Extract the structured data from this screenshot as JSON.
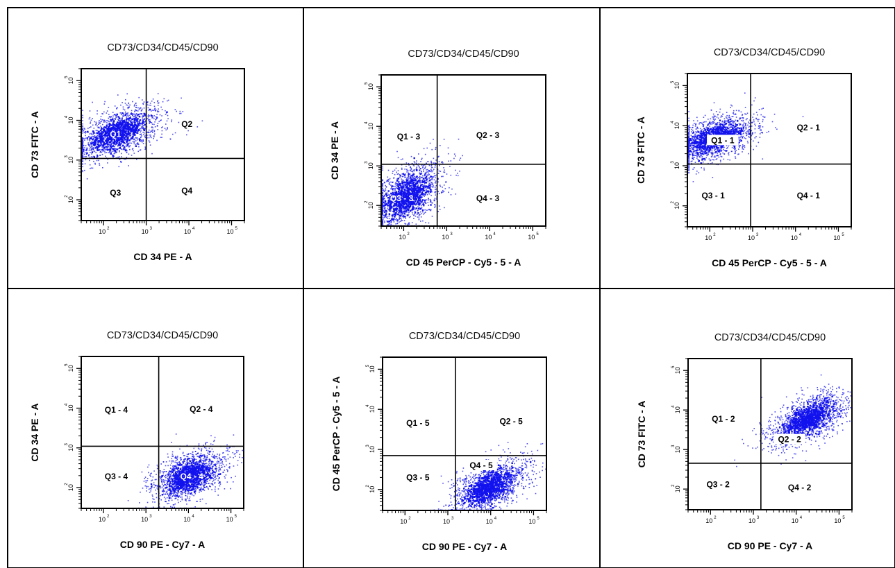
{
  "figure_title": "",
  "colors": {
    "events": "#1212ee",
    "grid": "#000000",
    "minor_events": "#44cc66"
  },
  "chart_data": [
    {
      "type": "scatter",
      "title": "CD73/CD34/CD45/CD90",
      "xlabel": "CD 34 PE - A",
      "ylabel": "CD 73 FITC - A",
      "xscale": "log",
      "yscale": "log",
      "xlim": [
        30,
        200000
      ],
      "ylim": [
        30,
        200000
      ],
      "xticks": [
        100,
        1000,
        10000,
        100000
      ],
      "yticks": [
        100,
        1000,
        10000,
        100000
      ],
      "xtick_labels": [
        "10",
        "10",
        "10",
        "10"
      ],
      "xtick_exponents": [
        "2",
        "3",
        "4",
        "5"
      ],
      "ytick_labels": [
        "10",
        "10",
        "10",
        "10"
      ],
      "ytick_exponents": [
        "2",
        "3",
        "4",
        "5"
      ],
      "gate": {
        "x": 1000,
        "y": 1100
      },
      "quadrants": [
        {
          "label": "Q1",
          "x": 190,
          "y": 4500
        },
        {
          "label": "Q2",
          "x": 9000,
          "y": 8000
        },
        {
          "label": "Q3",
          "x": 190,
          "y": 150
        },
        {
          "label": "Q4",
          "x": 9000,
          "y": 170
        }
      ],
      "population": {
        "center": [
          210,
          5000
        ],
        "spread": [
          0.55,
          0.36
        ],
        "rho": 0.55
      },
      "highlight_labels": [
        "Q1"
      ]
    },
    {
      "type": "scatter",
      "title": "CD73/CD34/CD45/CD90",
      "xlabel": "CD 45 PerCP - Cy5 - 5 - A",
      "ylabel": "CD 34 PE - A",
      "xscale": "log",
      "yscale": "log",
      "xlim": [
        30,
        200000
      ],
      "ylim": [
        30,
        200000
      ],
      "xticks": [
        100,
        1000,
        10000,
        100000
      ],
      "yticks": [
        100,
        1000,
        10000,
        100000
      ],
      "xtick_labels": [
        "10",
        "10",
        "10",
        "10"
      ],
      "xtick_exponents": [
        "2",
        "3",
        "4",
        "5"
      ],
      "ytick_labels": [
        "10",
        "10",
        "10",
        "10"
      ],
      "ytick_exponents": [
        "2",
        "3",
        "4",
        "5"
      ],
      "gate": {
        "x": 600,
        "y": 1100
      },
      "quadrants": [
        {
          "label": "Q1 - 3",
          "x": 130,
          "y": 5500
        },
        {
          "label": "Q2 - 3",
          "x": 9000,
          "y": 6000
        },
        {
          "label": "Q3 - 3",
          "x": 90,
          "y": 150
        },
        {
          "label": "Q4 - 3",
          "x": 9000,
          "y": 150
        }
      ],
      "population": {
        "center": [
          110,
          180
        ],
        "spread": [
          0.45,
          0.45
        ],
        "rho": 0.5
      },
      "highlight_labels": [
        "Q3 - 3"
      ]
    },
    {
      "type": "scatter",
      "title": "CD73/CD34/CD45/CD90",
      "xlabel": "CD 45 PerCP - Cy5 - 5 - A",
      "ylabel": "CD 73 FITC - A",
      "xscale": "log",
      "yscale": "log",
      "xlim": [
        30,
        200000
      ],
      "ylim": [
        30,
        200000
      ],
      "xticks": [
        100,
        1000,
        10000,
        100000
      ],
      "yticks": [
        100,
        1000,
        10000,
        100000
      ],
      "xtick_labels": [
        "10",
        "10",
        "10",
        "10"
      ],
      "xtick_exponents": [
        "2",
        "3",
        "4",
        "5"
      ],
      "ytick_labels": [
        "10",
        "10",
        "10",
        "10"
      ],
      "ytick_exponents": [
        "2",
        "3",
        "4",
        "5"
      ],
      "gate": {
        "x": 900,
        "y": 1100
      },
      "quadrants": [
        {
          "label": "Q1 - 1",
          "x": 200,
          "y": 4300
        },
        {
          "label": "Q2 - 1",
          "x": 20000,
          "y": 9000
        },
        {
          "label": "Q3 - 1",
          "x": 120,
          "y": 180
        },
        {
          "label": "Q4 - 1",
          "x": 20000,
          "y": 180
        }
      ],
      "population": {
        "center": [
          130,
          5000
        ],
        "spread": [
          0.5,
          0.32
        ],
        "rho": 0.5
      },
      "highlight_labels": [
        "Q1 - 1"
      ]
    },
    {
      "type": "scatter",
      "title": "CD73/CD34/CD45/CD90",
      "xlabel": "CD 90 PE - Cy7 - A",
      "ylabel": "CD 34 PE - A",
      "xscale": "log",
      "yscale": "log",
      "xlim": [
        30,
        200000
      ],
      "ylim": [
        30,
        200000
      ],
      "xticks": [
        100,
        1000,
        10000,
        100000
      ],
      "yticks": [
        100,
        1000,
        10000,
        100000
      ],
      "xtick_labels": [
        "10",
        "10",
        "10",
        "10"
      ],
      "xtick_exponents": [
        "2",
        "3",
        "4",
        "5"
      ],
      "ytick_labels": [
        "10",
        "10",
        "10",
        "10"
      ],
      "ytick_exponents": [
        "2",
        "3",
        "4",
        "5"
      ],
      "gate": {
        "x": 2000,
        "y": 1100
      },
      "quadrants": [
        {
          "label": "Q1 - 4",
          "x": 200,
          "y": 9000
        },
        {
          "label": "Q2 - 4",
          "x": 20000,
          "y": 9500
        },
        {
          "label": "Q3 - 4",
          "x": 200,
          "y": 190
        },
        {
          "label": "Q4 - 4",
          "x": 12000,
          "y": 190
        }
      ],
      "population": {
        "center": [
          10000,
          200
        ],
        "spread": [
          0.45,
          0.35
        ],
        "rho": 0.45
      },
      "highlight_labels": [
        "Q4 - 4"
      ]
    },
    {
      "type": "scatter",
      "title": "CD73/CD34/CD45/CD90",
      "xlabel": "CD 90 PE - Cy7 - A",
      "ylabel": "CD 45 PerCP - Cy5 - 5 - A",
      "xscale": "log",
      "yscale": "log",
      "xlim": [
        30,
        200000
      ],
      "ylim": [
        30,
        200000
      ],
      "xticks": [
        100,
        1000,
        10000,
        100000
      ],
      "yticks": [
        100,
        1000,
        10000,
        100000
      ],
      "xtick_labels": [
        "10",
        "10",
        "10",
        "10"
      ],
      "xtick_exponents": [
        "2",
        "3",
        "4",
        "5"
      ],
      "ytick_labels": [
        "10",
        "10",
        "10",
        "10"
      ],
      "ytick_exponents": [
        "2",
        "3",
        "4",
        "5"
      ],
      "gate": {
        "x": 1500,
        "y": 700
      },
      "quadrants": [
        {
          "label": "Q1 - 5",
          "x": 200,
          "y": 4500
        },
        {
          "label": "Q2 - 5",
          "x": 30000,
          "y": 5000
        },
        {
          "label": "Q3 - 5",
          "x": 200,
          "y": 200
        },
        {
          "label": "Q4 - 5",
          "x": 6000,
          "y": 400
        }
      ],
      "population": {
        "center": [
          9000,
          120
        ],
        "spread": [
          0.45,
          0.35
        ],
        "rho": 0.55
      },
      "highlight_labels": [
        "Q4 - 5"
      ]
    },
    {
      "type": "scatter",
      "title": "CD73/CD34/CD45/CD90",
      "xlabel": "CD 90 PE - Cy7 - A",
      "ylabel": "CD 73  FITC - A",
      "xscale": "log",
      "yscale": "log",
      "xlim": [
        30,
        200000
      ],
      "ylim": [
        30,
        200000
      ],
      "xticks": [
        100,
        1000,
        10000,
        100000
      ],
      "yticks": [
        100,
        1000,
        10000,
        100000
      ],
      "xtick_labels": [
        "10",
        "10",
        "10",
        "10"
      ],
      "xtick_exponents": [
        "2",
        "3",
        "4",
        "5"
      ],
      "ytick_labels": [
        "10",
        "10",
        "10",
        "10"
      ],
      "ytick_exponents": [
        "2",
        "3",
        "4",
        "5"
      ],
      "gate": {
        "x": 1500,
        "y": 450
      },
      "quadrants": [
        {
          "label": "Q1 - 2",
          "x": 200,
          "y": 6000
        },
        {
          "label": "Q2 - 2",
          "x": 7000,
          "y": 1800
        },
        {
          "label": "Q3 - 2",
          "x": 150,
          "y": 130
        },
        {
          "label": "Q4 - 2",
          "x": 12000,
          "y": 110
        }
      ],
      "population": {
        "center": [
          18000,
          6000
        ],
        "spread": [
          0.48,
          0.36
        ],
        "rho": 0.6
      },
      "highlight_labels": [
        "Q2 - 2"
      ]
    }
  ]
}
